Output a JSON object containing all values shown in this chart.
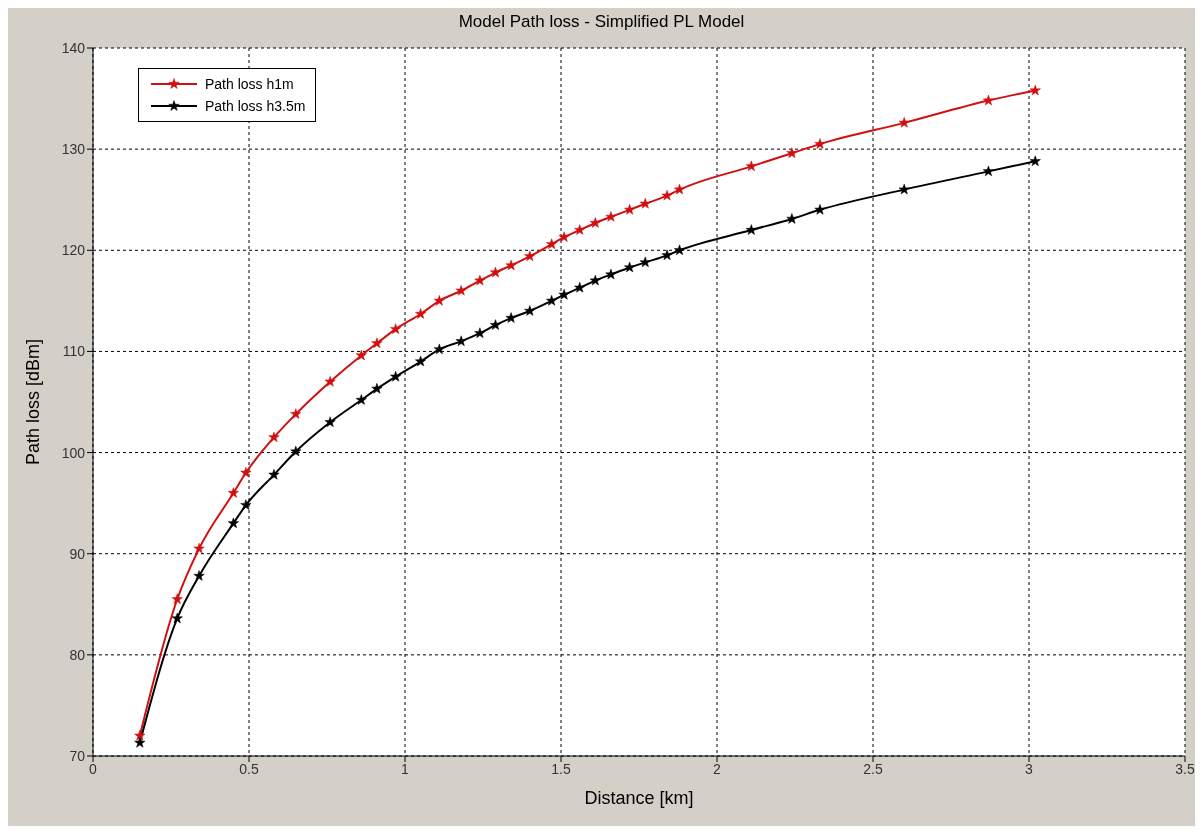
{
  "chart_data": {
    "type": "line",
    "title": "Model Path loss - Simplified PL Model",
    "xlabel": "Distance  [km]",
    "ylabel": "Path loss [dBm]",
    "x": [
      0.15,
      0.27,
      0.34,
      0.45,
      0.49,
      0.58,
      0.65,
      0.76,
      0.86,
      0.91,
      0.97,
      1.05,
      1.11,
      1.18,
      1.24,
      1.29,
      1.34,
      1.4,
      1.47,
      1.51,
      1.56,
      1.61,
      1.66,
      1.72,
      1.77,
      1.84,
      1.88,
      2.11,
      2.24,
      2.33,
      2.6,
      2.87,
      3.02
    ],
    "series": [
      {
        "name": "Path loss h1m",
        "color": "#d01010",
        "values": [
          72,
          85.5,
          90.5,
          96,
          98,
          101.5,
          103.8,
          107,
          109.6,
          110.8,
          112.2,
          113.7,
          115,
          116,
          117,
          117.8,
          118.5,
          119.4,
          120.6,
          121.3,
          122,
          122.7,
          123.3,
          124,
          124.6,
          125.4,
          126,
          128.3,
          129.6,
          130.5,
          132.6,
          134.8,
          135.8
        ]
      },
      {
        "name": "Path loss h3.5m",
        "color": "#000000",
        "values": [
          71.3,
          83.6,
          87.8,
          93,
          94.8,
          97.8,
          100.1,
          103,
          105.2,
          106.3,
          107.5,
          109,
          110.2,
          111,
          111.8,
          112.6,
          113.3,
          114,
          115,
          115.6,
          116.3,
          117,
          117.6,
          118.3,
          118.8,
          119.5,
          120,
          122,
          123.1,
          124,
          126,
          127.8,
          128.8
        ]
      }
    ],
    "xlim": [
      0,
      3.5
    ],
    "xticks": [
      0,
      0.5,
      1,
      1.5,
      2,
      2.5,
      3,
      3.5
    ],
    "ylim": [
      70,
      140
    ],
    "yticks": [
      70,
      80,
      90,
      100,
      110,
      120,
      130,
      140
    ],
    "grid": true,
    "legend": "top left",
    "marker": "star",
    "line_style": "solid"
  }
}
